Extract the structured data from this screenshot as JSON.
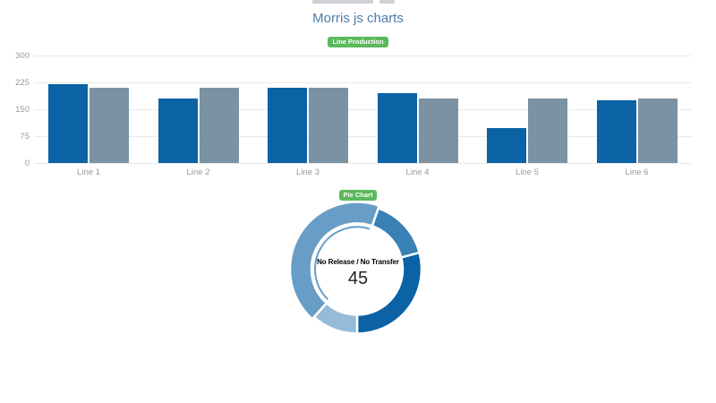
{
  "page": {
    "title": "Morris js charts"
  },
  "colors": {
    "badge_bg": "#5cb85c",
    "badge_text": "#ffffff",
    "title_text": "#4d7cab",
    "axis_text": "#999999",
    "grid_line": "#e9e9e9",
    "bar_blue": "#0b62a4",
    "bar_gray": "#7a92a3",
    "donut_dark": "#0b62a4",
    "donut_mid_dark": "#3980b5",
    "donut_mid": "#679dc6",
    "donut_light": "#95bbd7"
  },
  "bar_chart": {
    "badge": "Line Production"
  },
  "donut_chart": {
    "badge": "Pie Chart",
    "selected_label": "No Release / No Transfer",
    "selected_value": "45"
  },
  "chart_data": [
    {
      "type": "bar",
      "title": "Line Production",
      "categories": [
        "Line 1",
        "Line 2",
        "Line 3",
        "Line 4",
        "Line 5",
        "Line 6"
      ],
      "series": [
        {
          "name": "blue",
          "color": "#0b62a4",
          "values": [
            220,
            180,
            210,
            195,
            97,
            175
          ]
        },
        {
          "name": "gray",
          "color": "#7a92a3",
          "values": [
            210,
            210,
            210,
            180,
            180,
            180
          ]
        }
      ],
      "xlabel": "",
      "ylabel": "",
      "ylim": [
        0,
        300
      ],
      "yticks": [
        0,
        75,
        150,
        225,
        300
      ],
      "grid": true,
      "legend_position": "none"
    },
    {
      "type": "pie",
      "donut": true,
      "title": "Pie Chart",
      "selected_index": 2,
      "center_label": "No Release / No Transfer",
      "center_value": 45,
      "segments": [
        {
          "value": 30,
          "color": "#0b62a4"
        },
        {
          "value": 16,
          "color": "#3980b5"
        },
        {
          "value": 45,
          "color": "#679dc6",
          "label": "No Release / No Transfer"
        },
        {
          "value": 12,
          "color": "#95bbd7"
        }
      ]
    }
  ]
}
